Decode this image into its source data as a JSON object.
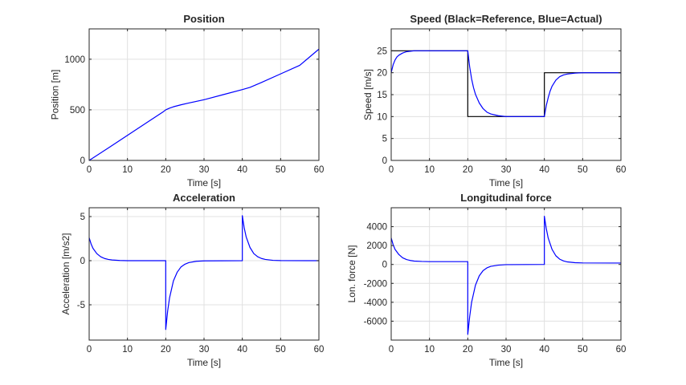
{
  "colors": {
    "actual": "#0000ff",
    "reference": "#000000",
    "grid": "#e0e0e0",
    "axis": "#262626"
  },
  "chart_data": [
    {
      "type": "line",
      "title": "Position",
      "xlabel": "Time [s]",
      "ylabel": "Position [m]",
      "xlim": [
        0,
        60
      ],
      "ylim": [
        0,
        1300
      ],
      "xticks": [
        0,
        10,
        20,
        30,
        40,
        50,
        60
      ],
      "yticks": [
        0,
        500,
        1000
      ],
      "ytick_labels": [
        "0",
        "500",
        "1000"
      ],
      "grid": true,
      "series": [
        {
          "color": "#0000ff",
          "x": [
            0,
            5,
            10,
            15,
            19.5,
            20,
            21,
            22,
            24,
            26,
            30,
            35,
            40,
            42,
            45,
            50,
            55,
            60
          ],
          "y": [
            0,
            123,
            248,
            373,
            485,
            500,
            517,
            530,
            550,
            567,
            600,
            650,
            700,
            722,
            770,
            855,
            940,
            1100
          ]
        }
      ]
    },
    {
      "type": "line",
      "title": "Speed (Black=Reference, Blue=Actual)",
      "xlabel": "Time [s]",
      "ylabel": "Speed [m/s]",
      "xlim": [
        0,
        60
      ],
      "ylim": [
        0,
        30
      ],
      "xticks": [
        0,
        10,
        20,
        30,
        40,
        50,
        60
      ],
      "yticks": [
        0,
        5,
        10,
        15,
        20,
        25
      ],
      "ytick_labels": [
        "0",
        "5",
        "10",
        "15",
        "20",
        "25"
      ],
      "grid": true,
      "series": [
        {
          "color": "#000000",
          "x": [
            0,
            20,
            20,
            40,
            40,
            60
          ],
          "y": [
            25,
            25,
            10,
            10,
            20,
            20
          ]
        },
        {
          "color": "#0000ff",
          "x": [
            0,
            0.5,
            1,
            1.5,
            2,
            3,
            4,
            5,
            6,
            8,
            10,
            20,
            20.5,
            21,
            21.5,
            22,
            23,
            24,
            25,
            26,
            28,
            30,
            40,
            40.5,
            41,
            41.5,
            42,
            43,
            44,
            45,
            46,
            48,
            50,
            60
          ],
          "y": [
            20,
            21.8,
            22.9,
            23.6,
            24.0,
            24.5,
            24.8,
            24.9,
            25,
            25,
            25,
            25,
            21.3,
            18.6,
            16.6,
            15.1,
            13.1,
            11.8,
            11.0,
            10.6,
            10.2,
            10.0,
            10.0,
            12.5,
            14.3,
            15.8,
            16.9,
            18.3,
            19.1,
            19.5,
            19.7,
            19.9,
            20,
            20
          ]
        }
      ]
    },
    {
      "type": "line",
      "title": "Acceleration",
      "xlabel": "Time [s]",
      "ylabel": "Acceleration [m/s2]",
      "xlim": [
        0,
        60
      ],
      "ylim": [
        -9,
        6
      ],
      "xticks": [
        0,
        10,
        20,
        30,
        40,
        50,
        60
      ],
      "yticks": [
        -5,
        0,
        5
      ],
      "ytick_labels": [
        "-5",
        "0",
        "5"
      ],
      "grid": true,
      "series": [
        {
          "color": "#0000ff",
          "x": [
            0,
            0.5,
            1,
            2,
            3,
            4,
            5,
            6,
            8,
            10,
            20,
            20,
            20.5,
            21,
            22,
            23,
            24,
            25,
            26,
            28,
            30,
            40,
            40,
            40.5,
            41,
            42,
            43,
            44,
            45,
            46,
            48,
            50,
            60
          ],
          "y": [
            2.6,
            1.9,
            1.4,
            0.8,
            0.45,
            0.25,
            0.14,
            0.08,
            0.02,
            0,
            0,
            -7.8,
            -5.7,
            -4.2,
            -2.3,
            -1.3,
            -0.7,
            -0.4,
            -0.22,
            -0.07,
            -0.02,
            0,
            5.1,
            3.7,
            2.7,
            1.5,
            0.8,
            0.45,
            0.25,
            0.14,
            0.04,
            0.01,
            0
          ]
        }
      ]
    },
    {
      "type": "line",
      "title": "Longitudinal force",
      "xlabel": "Time [s]",
      "ylabel": "Lon. force [N]",
      "xlim": [
        0,
        60
      ],
      "ylim": [
        -8000,
        6000
      ],
      "xticks": [
        0,
        10,
        20,
        30,
        40,
        50,
        60
      ],
      "yticks": [
        -6000,
        -4000,
        -2000,
        0,
        2000,
        4000
      ],
      "ytick_labels": [
        "-6000",
        "-4000",
        "-2000",
        "0",
        "2000",
        "4000"
      ],
      "grid": true,
      "series": [
        {
          "color": "#0000ff",
          "x": [
            0,
            0.5,
            1,
            2,
            3,
            4,
            5,
            6,
            8,
            10,
            20,
            20,
            20.5,
            21,
            22,
            23,
            24,
            25,
            26,
            28,
            30,
            40,
            40,
            40.5,
            41,
            42,
            43,
            44,
            45,
            46,
            48,
            50,
            60
          ],
          "y": [
            2800,
            2100,
            1600,
            1050,
            700,
            520,
            420,
            360,
            320,
            300,
            300,
            -7400,
            -5500,
            -4000,
            -2200,
            -1200,
            -650,
            -360,
            -200,
            -70,
            -20,
            0,
            5100,
            3800,
            2800,
            1600,
            920,
            560,
            370,
            270,
            190,
            160,
            150
          ]
        }
      ]
    }
  ]
}
